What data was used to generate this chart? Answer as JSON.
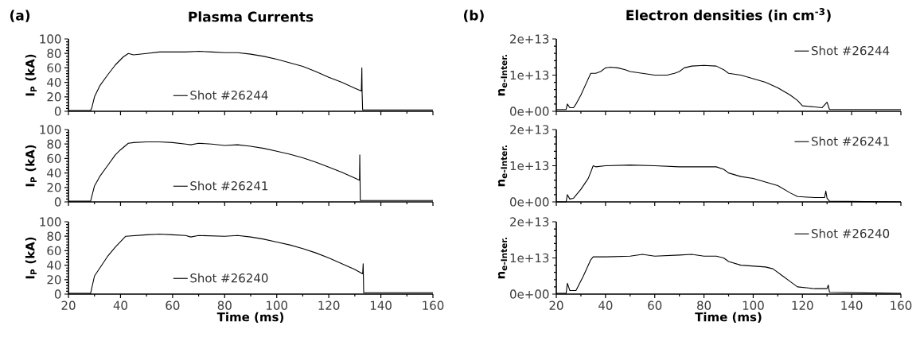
{
  "chart_data": [
    {
      "type": "line",
      "title": "Plasma Currents",
      "ylabel": "I$_{P}$ (kA)",
      "annotations": [
        "(a)"
      ],
      "xlim": [
        20,
        160
      ],
      "xticks": [
        20,
        40,
        60,
        80,
        100,
        120,
        140,
        160
      ],
      "ylim": [
        0,
        100
      ],
      "yticks": [
        0,
        20,
        40,
        60,
        80,
        100
      ],
      "tick_labels": "y",
      "legend": "bottom",
      "series": [
        {
          "name": "Shot #26244",
          "color": "#000000",
          "x": [
            20,
            28.5,
            29,
            30,
            32,
            35,
            38,
            41,
            43,
            45,
            50,
            55,
            60,
            65,
            70,
            75,
            80,
            85,
            90,
            95,
            100,
            105,
            110,
            115,
            120,
            125,
            130,
            132.5,
            132.7,
            132.8,
            133,
            140,
            160
          ],
          "values": [
            1,
            1,
            5,
            20,
            35,
            50,
            64,
            75,
            80,
            78,
            80,
            82,
            82,
            82,
            83,
            82,
            81,
            81,
            79,
            76,
            72,
            67,
            62,
            55,
            47,
            40,
            32,
            28,
            60,
            25,
            2,
            2,
            2
          ]
        }
      ]
    },
    {
      "type": "line",
      "title": "Electron densities (in cm$^{-3}$)",
      "ylabel": "n$_{e-Inter.}$",
      "annotations": [
        "(b)"
      ],
      "xlim": [
        20,
        160
      ],
      "xticks": [
        20,
        40,
        60,
        80,
        100,
        120,
        140,
        160
      ],
      "ylim": [
        0,
        20000000000000.0
      ],
      "yticks": [
        {
          "value": 0,
          "label": "0e+00"
        },
        {
          "value": 10000000000000.0,
          "label": "1e+13"
        },
        {
          "value": 20000000000000.0,
          "label": "2e+13"
        }
      ],
      "tick_labels": "y",
      "legend": "top right",
      "series": [
        {
          "name": "Shot #26244",
          "color": "#000000",
          "x": [
            20,
            24,
            24.5,
            25.5,
            27,
            28,
            30,
            32,
            34,
            36,
            38,
            40,
            42,
            45,
            48,
            50,
            55,
            60,
            65,
            68,
            70,
            72,
            75,
            80,
            85,
            88,
            90,
            95,
            100,
            105,
            110,
            115,
            118,
            120,
            125,
            128,
            130,
            131,
            160
          ],
          "values": [
            500000000000.0,
            500000000000.0,
            2000000000000.0,
            1000000000000.0,
            1000000000000.0,
            2000000000000.0,
            4500000000000.0,
            7500000000000.0,
            10500000000000.0,
            10500000000000.0,
            11000000000000.0,
            12000000000000.0,
            12200000000000.0,
            12000000000000.0,
            11500000000000.0,
            11000000000000.0,
            10500000000000.0,
            10000000000000.0,
            10000000000000.0,
            10500000000000.0,
            11000000000000.0,
            12000000000000.0,
            12500000000000.0,
            12700000000000.0,
            12500000000000.0,
            11500000000000.0,
            10500000000000.0,
            10000000000000.0,
            9000000000000.0,
            8000000000000.0,
            6500000000000.0,
            4500000000000.0,
            3000000000000.0,
            1500000000000.0,
            1200000000000.0,
            1000000000000.0,
            2500000000000.0,
            500000000000.0,
            500000000000.0
          ]
        }
      ]
    },
    {
      "type": "line",
      "ylabel": "I$_{P}$ (kA)",
      "xlim": [
        20,
        160
      ],
      "xticks": [
        20,
        40,
        60,
        80,
        100,
        120,
        140,
        160
      ],
      "ylim": [
        0,
        100
      ],
      "yticks": [
        0,
        20,
        40,
        60,
        80,
        100
      ],
      "tick_labels": "y",
      "legend": "bottom",
      "series": [
        {
          "name": "Shot #26241",
          "color": "#000000",
          "x": [
            20,
            28.5,
            30,
            32,
            35,
            38,
            40,
            43,
            45,
            50,
            55,
            60,
            65,
            67,
            70,
            75,
            80,
            85,
            90,
            95,
            100,
            105,
            110,
            115,
            120,
            125,
            130,
            131.8,
            131.9,
            132.1,
            140,
            160
          ],
          "values": [
            1,
            1,
            22,
            35,
            50,
            65,
            72,
            81,
            82,
            83,
            83,
            82,
            80,
            79,
            81,
            80,
            78,
            79,
            77,
            74,
            70,
            66,
            61,
            55,
            48,
            41,
            33,
            30,
            65,
            2,
            2,
            2
          ]
        }
      ]
    },
    {
      "type": "line",
      "ylabel": "n$_{e-Inter.}$",
      "xlim": [
        20,
        160
      ],
      "xticks": [
        20,
        40,
        60,
        80,
        100,
        120,
        140,
        160
      ],
      "ylim": [
        0,
        20000000000000.0
      ],
      "yticks": [
        {
          "value": 0,
          "label": "0e+00"
        },
        {
          "value": 10000000000000.0,
          "label": "1e+13"
        },
        {
          "value": 20000000000000.0,
          "label": "2e+13"
        }
      ],
      "tick_labels": "y",
      "legend": "top right",
      "series": [
        {
          "name": "Shot #26241",
          "color": "#000000",
          "x": [
            20,
            24,
            24.5,
            25.5,
            27,
            30,
            33,
            35,
            36,
            40,
            50,
            60,
            70,
            80,
            85,
            88,
            90,
            95,
            100,
            105,
            110,
            115,
            118,
            125,
            129,
            129.5,
            130,
            131,
            160
          ],
          "values": [
            0,
            0,
            2000000000000.0,
            800000000000.0,
            1000000000000.0,
            3500000000000.0,
            6500000000000.0,
            10000000000000.0,
            9700000000000.0,
            10000000000000.0,
            10200000000000.0,
            10000000000000.0,
            9700000000000.0,
            9700000000000.0,
            9700000000000.0,
            9000000000000.0,
            8000000000000.0,
            7000000000000.0,
            6500000000000.0,
            5500000000000.0,
            4500000000000.0,
            2500000000000.0,
            1500000000000.0,
            1200000000000.0,
            1200000000000.0,
            3000000000000.0,
            1000000000000.0,
            200000000000.0,
            0
          ]
        }
      ]
    },
    {
      "type": "line",
      "ylabel": "I$_{P}$ (kA)",
      "xlabel": "Time (ms)",
      "xlim": [
        20,
        160
      ],
      "xticks": [
        20,
        40,
        60,
        80,
        100,
        120,
        140,
        160
      ],
      "ylim": [
        0,
        100
      ],
      "yticks": [
        0,
        20,
        40,
        60,
        80,
        100
      ],
      "legend": "bottom",
      "series": [
        {
          "name": "Shot #26240",
          "color": "#000000",
          "x": [
            20,
            28.5,
            30,
            35,
            38,
            42,
            50,
            55,
            60,
            65,
            67,
            70,
            80,
            85,
            90,
            95,
            100,
            105,
            110,
            115,
            120,
            125,
            130,
            133,
            133.2,
            133.4,
            140,
            160
          ],
          "values": [
            1,
            1,
            25,
            52,
            65,
            80,
            82,
            83,
            82,
            81,
            79,
            81,
            80,
            81,
            79,
            76,
            72,
            68,
            63,
            57,
            50,
            42,
            34,
            28,
            42,
            2,
            2,
            2
          ]
        }
      ]
    },
    {
      "type": "line",
      "ylabel": "n$_{e-Inter.}$",
      "xlabel": "Time (ms)",
      "xlim": [
        20,
        160
      ],
      "xticks": [
        20,
        40,
        60,
        80,
        100,
        120,
        140,
        160
      ],
      "ylim": [
        0,
        20000000000000.0
      ],
      "yticks": [
        {
          "value": 0,
          "label": "0e+00"
        },
        {
          "value": 10000000000000.0,
          "label": "1e+13"
        },
        {
          "value": 20000000000000.0,
          "label": "2e+13"
        }
      ],
      "legend": "top right",
      "series": [
        {
          "name": "Shot #26240",
          "color": "#000000",
          "x": [
            20,
            24,
            24.5,
            25.5,
            28,
            31,
            34,
            35,
            40,
            50,
            55,
            60,
            70,
            75,
            80,
            85,
            88,
            90,
            95,
            105,
            108,
            112,
            115,
            118,
            125,
            130,
            130.5,
            131,
            160
          ],
          "values": [
            200000000000.0,
            200000000000.0,
            3000000000000.0,
            1000000000000.0,
            1000000000000.0,
            5000000000000.0,
            9500000000000.0,
            10300000000000.0,
            10300000000000.0,
            10500000000000.0,
            11000000000000.0,
            10500000000000.0,
            10800000000000.0,
            11000000000000.0,
            10500000000000.0,
            10500000000000.0,
            10000000000000.0,
            9000000000000.0,
            8000000000000.0,
            7500000000000.0,
            7000000000000.0,
            5000000000000.0,
            3500000000000.0,
            2000000000000.0,
            1500000000000.0,
            1500000000000.0,
            2500000000000.0,
            500000000000.0,
            200000000000.0
          ]
        }
      ]
    }
  ]
}
